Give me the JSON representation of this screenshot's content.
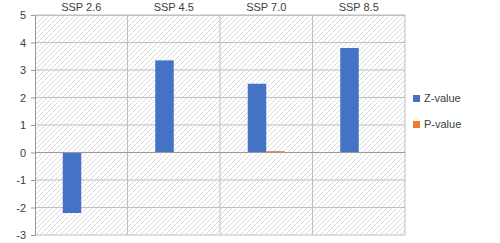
{
  "chart_data": {
    "type": "bar",
    "categories": [
      "SSP 2.6",
      "SSP 4.5",
      "SSP 7.0",
      "SSP 8.5"
    ],
    "series": [
      {
        "name": "Z-value",
        "color": "#4472c4",
        "values": [
          -2.2,
          3.35,
          2.5,
          3.8
        ]
      },
      {
        "name": "P-value",
        "color": "#ed7d31",
        "values": [
          0.02,
          0.01,
          0.05,
          0.02
        ]
      }
    ],
    "ylim": [
      -3,
      5
    ],
    "yticks": [
      -3,
      -2,
      -1,
      0,
      1,
      2,
      3,
      4,
      5
    ],
    "grid": true,
    "legend": "right"
  }
}
